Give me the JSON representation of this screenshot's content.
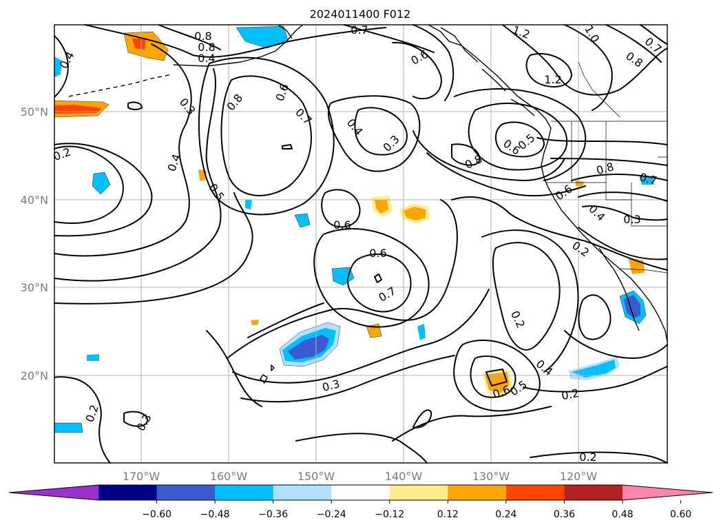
{
  "title": "2024011400 F012",
  "lon_labels": [
    "170°W",
    "160°W",
    "150°W",
    "140°W",
    "130°W",
    "120°W"
  ],
  "lat_labels": [
    "50°N",
    "40°N",
    "30°N",
    "20°N"
  ],
  "colorbar": {
    "tick_labels": [
      "−0.60",
      "−0.48",
      "−0.36",
      "−0.24",
      "−0.12",
      "0.12",
      "0.24",
      "0.36",
      "0.48",
      "0.60"
    ],
    "colors": [
      "#9932cc",
      "#00008b",
      "#3a5bd0",
      "#00bfff",
      "#b0e2ff",
      "#ffffff",
      "#ffec8b",
      "#ffa500",
      "#ff4500",
      "#b22222",
      "#ff85aa"
    ]
  },
  "contour_labels": [
    "0.8",
    "0.7",
    "1.2",
    "1.0",
    "0.7",
    "0.4",
    "0.8",
    "0.6",
    "0.8",
    "0.4",
    "1.2",
    "0.3",
    "0.6",
    "0.8",
    "0.7",
    "0.4",
    "0.3",
    "0.6",
    "0.5",
    "0.2",
    "0.4",
    "0.5",
    "0.8",
    "0.8",
    "0.7",
    "0.6",
    "0.4",
    "0.3",
    "0.6",
    "0.6",
    "0.7",
    "0.2",
    "0.2",
    "0.4",
    "0.6",
    "0.5",
    "0.3",
    "0.2",
    "0.3",
    "0.2",
    "0.2"
  ]
}
